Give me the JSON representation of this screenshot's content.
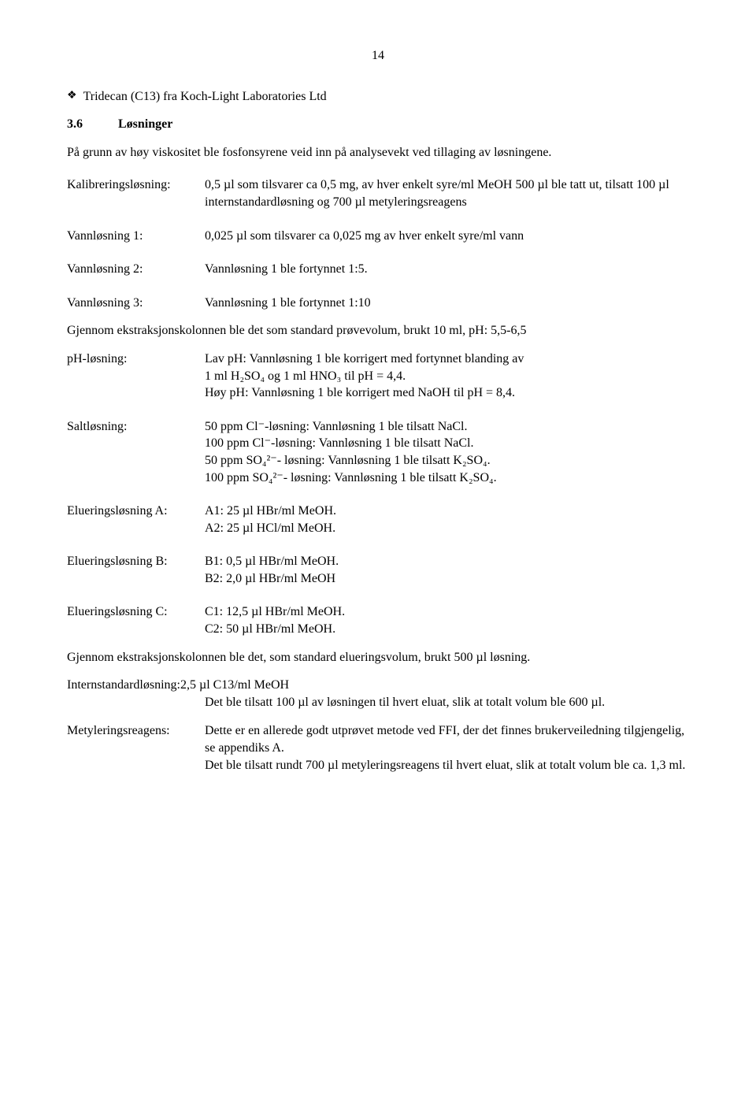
{
  "pageNumber": "14",
  "listItem": "Tridecan (C13) fra Koch-Light Laboratories Ltd",
  "section": {
    "number": "3.6",
    "title": "Løsninger"
  },
  "intro": "På grunn av høy viskositet ble fosfonsyrene veid inn på analysevekt ved tillaging av løsningene.",
  "defs": {
    "kalibrering": {
      "label": "Kalibreringsløsning:",
      "value": "0,5 µl som tilsvarer ca 0,5 mg, av hver enkelt syre/ml MeOH 500 µl ble tatt ut, tilsatt 100 µl internstandardløsning og 700 µl metyleringsreagens"
    },
    "vann1": {
      "label": "Vannløsning 1:",
      "value": "0,025 µl som tilsvarer ca 0,025 mg av hver enkelt syre/ml vann"
    },
    "vann2": {
      "label": "Vannløsning 2:",
      "value": "Vannløsning 1 ble fortynnet 1:5."
    },
    "vann3": {
      "label": "Vannløsning 3:",
      "value": "Vannløsning 1 ble fortynnet 1:10"
    },
    "paragraph1": "Gjennom ekstraksjonskolonnen ble det som standard prøvevolum, brukt 10 ml, pH: 5,5-6,5",
    "ph": {
      "label": "pH-løsning:",
      "line1": "Lav pH: Vannløsning 1 ble korrigert med fortynnet blanding av",
      "line2": "1 ml H₂SO₄ og 1 ml HNO₃ til pH = 4,4.",
      "line3": "Høy pH: Vannløsning 1 ble korrigert med NaOH til pH = 8,4."
    },
    "salt": {
      "label": "Saltløsning:",
      "line1": "50 ppm Cl⁻-løsning: Vannløsning 1 ble tilsatt NaCl.",
      "line2": "100 ppm Cl⁻-løsning: Vannløsning 1 ble tilsatt NaCl.",
      "line3": "50 ppm SO₄²⁻- løsning: Vannløsning 1 ble tilsatt K₂SO₄.",
      "line4": "100 ppm SO₄²⁻- løsning: Vannløsning 1 ble tilsatt K₂SO₄."
    },
    "elA": {
      "label": "Elueringsløsning A:",
      "line1": "A1: 25 µl HBr/ml MeOH.",
      "line2": "A2: 25 µl HCl/ml MeOH."
    },
    "elB": {
      "label": "Elueringsløsning B:",
      "line1": "B1: 0,5 µl HBr/ml MeOH.",
      "line2": "B2: 2,0 µl HBr/ml MeOH"
    },
    "elC": {
      "label": "Elueringsløsning C:",
      "line1": "C1: 12,5 µl HBr/ml MeOH.",
      "line2": "C2: 50 µl HBr/ml MeOH."
    },
    "paragraph2": "Gjennom ekstraksjonskolonnen ble det, som standard elueringsvolum, brukt 500 µl løsning.",
    "intern": {
      "label": "Internstandardløsning:2,5 µl C13/ml MeOH",
      "value": "Det ble tilsatt 100 µl av løsningen til hvert eluat, slik at totalt volum ble 600 µl."
    },
    "metyl": {
      "label": "Metyleringsreagens:",
      "value": "Dette er en allerede godt utprøvet metode ved FFI, der det finnes brukerveiledning tilgjengelig, se appendiks A.",
      "value2": "Det ble tilsatt rundt 700 µl metyleringsreagens til hvert eluat, slik at totalt volum ble ca. 1,3 ml."
    }
  }
}
